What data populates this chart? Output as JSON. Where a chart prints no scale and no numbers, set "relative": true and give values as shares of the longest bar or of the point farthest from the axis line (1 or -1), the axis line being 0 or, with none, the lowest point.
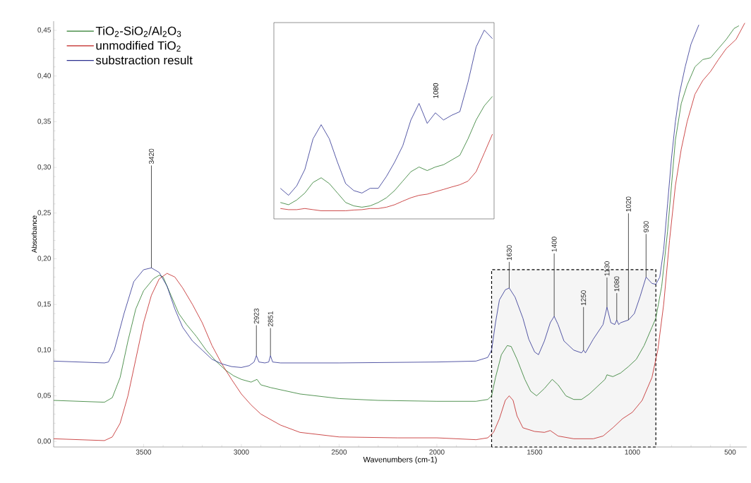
{
  "chart_data": [
    {
      "type": "line",
      "xlabel": "Wavenumbers (cm-1)",
      "ylabel": "Absorbance",
      "xlim": [
        3960,
        415
      ],
      "ylim": [
        -0.006,
        0.46
      ],
      "xticks": [
        3500,
        3000,
        2500,
        2000,
        1500,
        1000,
        500
      ],
      "yticks": [
        {
          "value": 0,
          "label": "0,00"
        },
        {
          "value": 0.05,
          "label": "0,05"
        },
        {
          "value": 0.1,
          "label": "0,10"
        },
        {
          "value": 0.15,
          "label": "0,15"
        },
        {
          "value": 0.2,
          "label": "0,20"
        },
        {
          "value": 0.25,
          "label": "0,25"
        },
        {
          "value": 0.3,
          "label": "0,30"
        },
        {
          "value": 0.35,
          "label": "0,35"
        },
        {
          "value": 0.4,
          "label": "0,40"
        },
        {
          "value": 0.45,
          "label": "0,45"
        }
      ],
      "legend": "top left",
      "marker": "none",
      "line_style": "solid",
      "series": [
        {
          "name": "TiO$_{2}$-SiO$_{2}$/Al$_{2}$O$_{3}$",
          "color": "#2a7a2a",
          "x": [
            3960,
            3700,
            3660,
            3620,
            3580,
            3540,
            3500,
            3450,
            3420,
            3400,
            3360,
            3320,
            3280,
            3230,
            3180,
            3130,
            3080,
            3040,
            3000,
            2950,
            2920,
            2900,
            2850,
            2700,
            2500,
            2300,
            2000,
            1800,
            1740,
            1720,
            1700,
            1670,
            1640,
            1620,
            1590,
            1550,
            1520,
            1490,
            1450,
            1410,
            1380,
            1340,
            1300,
            1260,
            1220,
            1180,
            1140,
            1130,
            1100,
            1060,
            1020,
            980,
            940,
            900,
            880,
            850,
            820,
            800,
            780,
            750,
            720,
            680,
            640,
            600,
            560,
            520,
            480,
            455
          ],
          "values": [
            0.045,
            0.043,
            0.048,
            0.07,
            0.11,
            0.145,
            0.165,
            0.178,
            0.182,
            0.18,
            0.16,
            0.14,
            0.128,
            0.115,
            0.1,
            0.088,
            0.078,
            0.072,
            0.068,
            0.065,
            0.068,
            0.062,
            0.059,
            0.052,
            0.047,
            0.045,
            0.044,
            0.044,
            0.046,
            0.05,
            0.07,
            0.095,
            0.105,
            0.104,
            0.09,
            0.068,
            0.055,
            0.05,
            0.058,
            0.068,
            0.062,
            0.05,
            0.046,
            0.046,
            0.052,
            0.06,
            0.068,
            0.073,
            0.071,
            0.075,
            0.082,
            0.09,
            0.105,
            0.125,
            0.135,
            0.17,
            0.23,
            0.28,
            0.33,
            0.37,
            0.39,
            0.41,
            0.418,
            0.42,
            0.43,
            0.44,
            0.452,
            0.455
          ]
        },
        {
          "name": "unmodified TiO$_{2}$",
          "color": "#c0201f",
          "x": [
            3960,
            3700,
            3660,
            3620,
            3580,
            3540,
            3500,
            3460,
            3420,
            3380,
            3340,
            3300,
            3250,
            3200,
            3150,
            3100,
            3050,
            3000,
            2950,
            2900,
            2800,
            2700,
            2500,
            2200,
            2000,
            1800,
            1740,
            1710,
            1680,
            1650,
            1630,
            1610,
            1590,
            1560,
            1500,
            1450,
            1420,
            1380,
            1300,
            1200,
            1150,
            1100,
            1050,
            1000,
            950,
            900,
            870,
            840,
            810,
            780,
            750,
            720,
            680,
            640,
            600,
            560,
            520,
            470,
            440,
            425
          ],
          "values": [
            0.003,
            0.001,
            0.005,
            0.02,
            0.05,
            0.09,
            0.13,
            0.16,
            0.178,
            0.184,
            0.18,
            0.168,
            0.15,
            0.13,
            0.105,
            0.085,
            0.068,
            0.052,
            0.04,
            0.03,
            0.018,
            0.01,
            0.005,
            0.004,
            0.004,
            0.002,
            0.004,
            0.01,
            0.025,
            0.045,
            0.05,
            0.045,
            0.028,
            0.015,
            0.011,
            0.01,
            0.012,
            0.006,
            0.003,
            0.003,
            0.006,
            0.015,
            0.025,
            0.032,
            0.045,
            0.07,
            0.1,
            0.15,
            0.22,
            0.28,
            0.32,
            0.35,
            0.38,
            0.395,
            0.405,
            0.418,
            0.43,
            0.44,
            0.452,
            0.458
          ]
        },
        {
          "name": "substraction result",
          "color": "#2b2f8f",
          "x": [
            3960,
            3700,
            3680,
            3650,
            3600,
            3550,
            3500,
            3460,
            3420,
            3380,
            3340,
            3300,
            3250,
            3200,
            3150,
            3100,
            3050,
            3000,
            2960,
            2935,
            2923,
            2910,
            2880,
            2860,
            2851,
            2840,
            2800,
            2500,
            2000,
            1800,
            1740,
            1720,
            1700,
            1680,
            1650,
            1630,
            1600,
            1560,
            1530,
            1500,
            1480,
            1450,
            1420,
            1400,
            1380,
            1350,
            1300,
            1260,
            1250,
            1240,
            1200,
            1150,
            1130,
            1110,
            1090,
            1080,
            1070,
            1060,
            1020,
            990,
            960,
            930,
            900,
            880,
            860,
            840,
            820,
            800,
            780,
            760,
            730,
            700,
            660
          ],
          "values": [
            0.088,
            0.086,
            0.087,
            0.1,
            0.14,
            0.175,
            0.188,
            0.19,
            0.185,
            0.17,
            0.145,
            0.125,
            0.11,
            0.1,
            0.09,
            0.085,
            0.082,
            0.081,
            0.083,
            0.087,
            0.094,
            0.087,
            0.086,
            0.087,
            0.094,
            0.087,
            0.086,
            0.086,
            0.087,
            0.088,
            0.092,
            0.1,
            0.13,
            0.155,
            0.166,
            0.168,
            0.158,
            0.135,
            0.112,
            0.098,
            0.095,
            0.11,
            0.13,
            0.137,
            0.128,
            0.11,
            0.1,
            0.097,
            0.1,
            0.097,
            0.112,
            0.128,
            0.147,
            0.13,
            0.128,
            0.133,
            0.128,
            0.13,
            0.133,
            0.14,
            0.159,
            0.18,
            0.173,
            0.172,
            0.18,
            0.21,
            0.26,
            0.31,
            0.35,
            0.38,
            0.41,
            0.435,
            0.456
          ]
        }
      ],
      "annotations": [
        {
          "text": "3420",
          "x": 3460,
          "y": 0.19
        },
        {
          "text": "2923",
          "x": 2923,
          "y": 0.094
        },
        {
          "text": "2851",
          "x": 2851,
          "y": 0.094
        },
        {
          "text": "1630",
          "x": 1630,
          "y": 0.168
        },
        {
          "text": "1400",
          "x": 1400,
          "y": 0.137
        },
        {
          "text": "1250",
          "x": 1250,
          "y": 0.1
        },
        {
          "text": "1130",
          "x": 1130,
          "y": 0.147
        },
        {
          "text": "1080",
          "x": 1080,
          "y": 0.133
        },
        {
          "text": "1020",
          "x": 1020,
          "y": 0.133
        },
        {
          "text": "930",
          "x": 930,
          "y": 0.18
        }
      ],
      "bands": [
        {
          "axis": "x",
          "from": 1720,
          "to": 880,
          "color": "#000000"
        }
      ]
    },
    {
      "type": "line",
      "relative": true,
      "categories": [
        null,
        null,
        null,
        null,
        null,
        null,
        null,
        null,
        null,
        null,
        null,
        null,
        null,
        null,
        null,
        null,
        null,
        null,
        null,
        null,
        null,
        null,
        null,
        null,
        null,
        null,
        null
      ],
      "series": [
        {
          "color": "#2a7a2a",
          "values": [
            0.087,
            0.075,
            0.1,
            0.137,
            0.193,
            0.218,
            0.187,
            0.137,
            0.087,
            0.069,
            0.062,
            0.069,
            0.087,
            0.112,
            0.15,
            0.2,
            0.25,
            0.275,
            0.256,
            0.275,
            0.287,
            0.312,
            0.337,
            0.424,
            0.524,
            0.599,
            0.649
          ]
        },
        {
          "color": "#c0201f",
          "values": [
            0.055,
            0.049,
            0.049,
            0.055,
            0.049,
            0.043,
            0.043,
            0.043,
            0.043,
            0.047,
            0.049,
            0.055,
            0.055,
            0.062,
            0.075,
            0.094,
            0.112,
            0.125,
            0.131,
            0.144,
            0.156,
            0.169,
            0.181,
            0.2,
            0.25,
            0.349,
            0.449
          ]
        },
        {
          "color": "#2b2f8f",
          "values": [
            0.162,
            0.125,
            0.175,
            0.262,
            0.424,
            0.499,
            0.424,
            0.3,
            0.187,
            0.15,
            0.137,
            0.162,
            0.162,
            0.225,
            0.3,
            0.387,
            0.524,
            0.612,
            0.506,
            0.562,
            0.524,
            0.549,
            0.568,
            0.724,
            0.911,
            1,
            0.955
          ]
        }
      ],
      "annotations": [
        "1080"
      ]
    }
  ]
}
